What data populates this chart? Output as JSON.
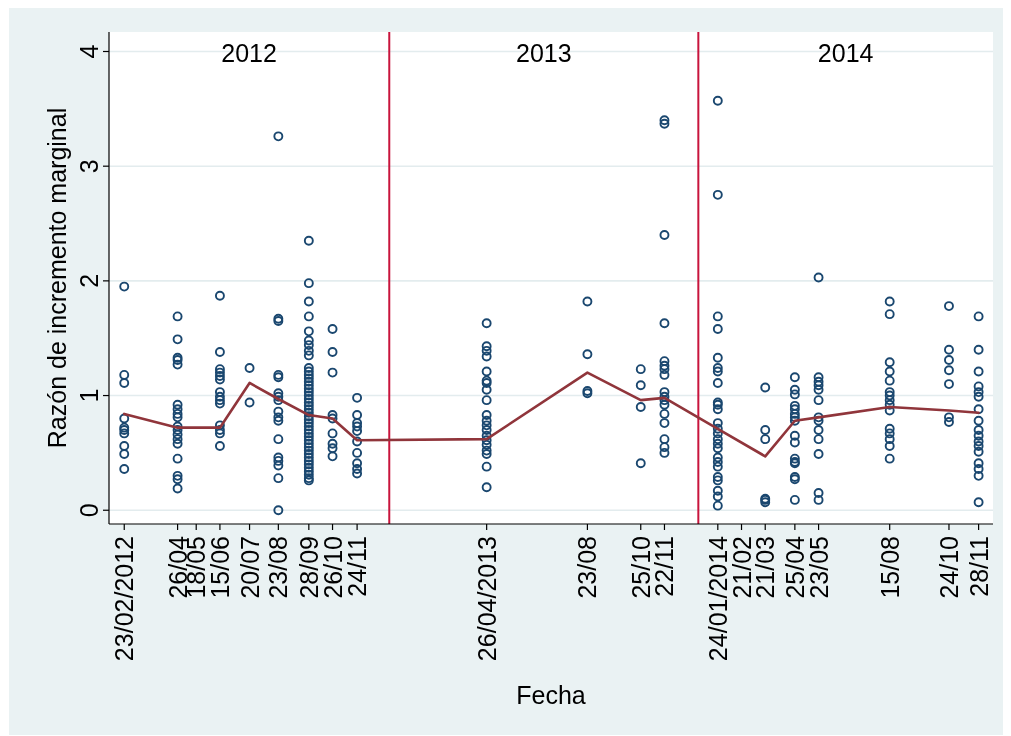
{
  "chart_data": {
    "type": "scatter",
    "xlabel": "Fecha",
    "ylabel": "Razón de incremento marginal",
    "xlim": [
      "2012-02-05",
      "2014-12-15"
    ],
    "ylim": [
      -0.12,
      4.17
    ],
    "xticks": [
      {
        "value": "2012-02-23",
        "label": "23/02/2012"
      },
      {
        "value": "2012-04-26",
        "label": "26/04"
      },
      {
        "value": "2012-05-18",
        "label": "18/05"
      },
      {
        "value": "2012-06-15",
        "label": "15/06"
      },
      {
        "value": "2012-07-20",
        "label": "20/07"
      },
      {
        "value": "2012-08-23",
        "label": "23/08"
      },
      {
        "value": "2012-09-28",
        "label": "28/09"
      },
      {
        "value": "2012-10-26",
        "label": "26/10"
      },
      {
        "value": "2012-11-24",
        "label": "24/11"
      },
      {
        "value": "2013-04-26",
        "label": "26/04/2013"
      },
      {
        "value": "2013-08-23",
        "label": "23/08"
      },
      {
        "value": "2013-10-25",
        "label": "25/10"
      },
      {
        "value": "2013-11-22",
        "label": "22/11"
      },
      {
        "value": "2014-01-24",
        "label": "24/01/2014"
      },
      {
        "value": "2014-02-21",
        "label": "21/02"
      },
      {
        "value": "2014-03-21",
        "label": "21/03"
      },
      {
        "value": "2014-04-25",
        "label": "25/04"
      },
      {
        "value": "2014-05-23",
        "label": "23/05"
      },
      {
        "value": "2014-08-15",
        "label": "15/08"
      },
      {
        "value": "2014-10-24",
        "label": "24/10"
      },
      {
        "value": "2014-11-28",
        "label": "28/11"
      }
    ],
    "yticks": [
      0,
      1,
      2,
      3,
      4
    ],
    "grid": "y",
    "marker": "circle",
    "ref_lines": [
      {
        "axis": "x",
        "value": "2013-01-01",
        "color": "#c8143c"
      },
      {
        "axis": "x",
        "value": "2014-01-01",
        "color": "#c8143c"
      }
    ],
    "annotations": [
      "2012",
      "2013",
      "2014"
    ],
    "series": [
      {
        "color": "#1a476f",
        "x": [
          "2012-02-23",
          "2012-02-23",
          "2012-02-23",
          "2012-02-23",
          "2012-02-23",
          "2012-02-23",
          "2012-02-23",
          "2012-02-23",
          "2012-02-23",
          "2012-02-23",
          "2012-04-26",
          "2012-04-26",
          "2012-04-26",
          "2012-04-26",
          "2012-04-26",
          "2012-04-26",
          "2012-04-26",
          "2012-04-26",
          "2012-04-26",
          "2012-04-26",
          "2012-04-26",
          "2012-04-26",
          "2012-04-26",
          "2012-04-26",
          "2012-04-26",
          "2012-04-26",
          "2012-04-26",
          "2012-04-26",
          "2012-06-15",
          "2012-06-15",
          "2012-06-15",
          "2012-06-15",
          "2012-06-15",
          "2012-06-15",
          "2012-06-15",
          "2012-06-15",
          "2012-06-15",
          "2012-06-15",
          "2012-06-15",
          "2012-06-15",
          "2012-06-15",
          "2012-06-15",
          "2012-07-20",
          "2012-07-20",
          "2012-08-23",
          "2012-08-23",
          "2012-08-23",
          "2012-08-23",
          "2012-08-23",
          "2012-08-23",
          "2012-08-23",
          "2012-08-23",
          "2012-08-23",
          "2012-08-23",
          "2012-08-23",
          "2012-08-23",
          "2012-08-23",
          "2012-08-23",
          "2012-08-23",
          "2012-08-23",
          "2012-08-23",
          "2012-09-28",
          "2012-09-28",
          "2012-09-28",
          "2012-09-28",
          "2012-09-28",
          "2012-09-28",
          "2012-09-28",
          "2012-09-28",
          "2012-09-28",
          "2012-09-28",
          "2012-09-28",
          "2012-09-28",
          "2012-09-28",
          "2012-09-28",
          "2012-09-28",
          "2012-09-28",
          "2012-09-28",
          "2012-09-28",
          "2012-09-28",
          "2012-09-28",
          "2012-09-28",
          "2012-09-28",
          "2012-09-28",
          "2012-09-28",
          "2012-09-28",
          "2012-09-28",
          "2012-09-28",
          "2012-09-28",
          "2012-09-28",
          "2012-09-28",
          "2012-09-28",
          "2012-09-28",
          "2012-09-28",
          "2012-09-28",
          "2012-09-28",
          "2012-09-28",
          "2012-09-28",
          "2012-09-28",
          "2012-09-28",
          "2012-09-28",
          "2012-09-28",
          "2012-09-28",
          "2012-09-28",
          "2012-10-26",
          "2012-10-26",
          "2012-10-26",
          "2012-10-26",
          "2012-10-26",
          "2012-10-26",
          "2012-10-26",
          "2012-10-26",
          "2012-10-26",
          "2012-11-24",
          "2012-11-24",
          "2012-11-24",
          "2012-11-24",
          "2012-11-24",
          "2012-11-24",
          "2012-11-24",
          "2012-11-24",
          "2012-11-24",
          "2012-11-24",
          "2013-04-26",
          "2013-04-26",
          "2013-04-26",
          "2013-04-26",
          "2013-04-26",
          "2013-04-26",
          "2013-04-26",
          "2013-04-26",
          "2013-04-26",
          "2013-04-26",
          "2013-04-26",
          "2013-04-26",
          "2013-04-26",
          "2013-04-26",
          "2013-04-26",
          "2013-04-26",
          "2013-04-26",
          "2013-04-26",
          "2013-04-26",
          "2013-04-26",
          "2013-08-23",
          "2013-08-23",
          "2013-08-23",
          "2013-08-23",
          "2013-10-25",
          "2013-10-25",
          "2013-10-25",
          "2013-10-25",
          "2013-11-22",
          "2013-11-22",
          "2013-11-22",
          "2013-11-22",
          "2013-11-22",
          "2013-11-22",
          "2013-11-22",
          "2013-11-22",
          "2013-11-22",
          "2013-11-22",
          "2013-11-22",
          "2013-11-22",
          "2013-11-22",
          "2013-11-22",
          "2013-11-22",
          "2013-11-22",
          "2013-11-22",
          "2014-01-24",
          "2014-01-24",
          "2014-01-24",
          "2014-01-24",
          "2014-01-24",
          "2014-01-24",
          "2014-01-24",
          "2014-01-24",
          "2014-01-24",
          "2014-01-24",
          "2014-01-24",
          "2014-01-24",
          "2014-01-24",
          "2014-01-24",
          "2014-01-24",
          "2014-01-24",
          "2014-01-24",
          "2014-01-24",
          "2014-01-24",
          "2014-01-24",
          "2014-01-24",
          "2014-01-24",
          "2014-01-24",
          "2014-01-24",
          "2014-01-24",
          "2014-03-21",
          "2014-03-21",
          "2014-03-21",
          "2014-03-21",
          "2014-03-21",
          "2014-03-21",
          "2014-04-25",
          "2014-04-25",
          "2014-04-25",
          "2014-04-25",
          "2014-04-25",
          "2014-04-25",
          "2014-04-25",
          "2014-04-25",
          "2014-04-25",
          "2014-04-25",
          "2014-04-25",
          "2014-04-25",
          "2014-04-25",
          "2014-04-25",
          "2014-04-25",
          "2014-04-25",
          "2014-05-23",
          "2014-05-23",
          "2014-05-23",
          "2014-05-23",
          "2014-05-23",
          "2014-05-23",
          "2014-05-23",
          "2014-05-23",
          "2014-05-23",
          "2014-05-23",
          "2014-05-23",
          "2014-05-23",
          "2014-05-23",
          "2014-08-15",
          "2014-08-15",
          "2014-08-15",
          "2014-08-15",
          "2014-08-15",
          "2014-08-15",
          "2014-08-15",
          "2014-08-15",
          "2014-08-15",
          "2014-08-15",
          "2014-08-15",
          "2014-08-15",
          "2014-08-15",
          "2014-08-15",
          "2014-08-15",
          "2014-10-24",
          "2014-10-24",
          "2014-10-24",
          "2014-10-24",
          "2014-10-24",
          "2014-10-24",
          "2014-10-24",
          "2014-11-28",
          "2014-11-28",
          "2014-11-28",
          "2014-11-28",
          "2014-11-28",
          "2014-11-28",
          "2014-11-28",
          "2014-11-28",
          "2014-11-28",
          "2014-11-28",
          "2014-11-28",
          "2014-11-28",
          "2014-11-28",
          "2014-11-28",
          "2014-11-28",
          "2014-11-28",
          "2014-11-28"
        ],
        "values": [
          1.95,
          1.18,
          1.11,
          0.8,
          0.72,
          0.7,
          0.67,
          0.56,
          0.49,
          0.36,
          1.69,
          1.49,
          1.33,
          1.31,
          1.27,
          0.92,
          0.88,
          0.84,
          0.81,
          0.73,
          0.7,
          0.66,
          0.62,
          0.58,
          0.45,
          0.3,
          0.27,
          0.19,
          1.87,
          1.38,
          1.23,
          1.2,
          1.17,
          1.14,
          1.03,
          0.99,
          0.96,
          0.93,
          0.74,
          0.7,
          0.67,
          0.56,
          1.24,
          0.94,
          3.26,
          1.67,
          1.65,
          1.18,
          1.16,
          1.02,
          0.99,
          0.96,
          0.86,
          0.81,
          0.78,
          0.62,
          0.46,
          0.43,
          0.39,
          0.28,
          0,
          2.35,
          1.98,
          1.82,
          1.69,
          1.56,
          1.48,
          1.44,
          1.39,
          1.35,
          1.24,
          1.21,
          1.18,
          1.15,
          1.12,
          1.09,
          1.06,
          1.03,
          1,
          0.97,
          0.94,
          0.91,
          0.88,
          0.85,
          0.82,
          0.79,
          0.76,
          0.73,
          0.7,
          0.67,
          0.64,
          0.61,
          0.58,
          0.55,
          0.52,
          0.49,
          0.46,
          0.43,
          0.4,
          0.37,
          0.34,
          0.31,
          0.28,
          0.26,
          1.58,
          1.38,
          1.2,
          0.83,
          0.8,
          0.67,
          0.58,
          0.54,
          0.47,
          0.98,
          0.83,
          0.76,
          0.73,
          0.69,
          0.6,
          0.5,
          0.41,
          0.36,
          0.32,
          1.63,
          1.43,
          1.39,
          1.34,
          1.21,
          1.13,
          1.11,
          1.05,
          0.96,
          0.83,
          0.78,
          0.74,
          0.7,
          0.65,
          0.61,
          0.57,
          0.52,
          0.49,
          0.38,
          0.2,
          1.82,
          1.36,
          1.04,
          1.02,
          1.23,
          1.09,
          0.9,
          0.41,
          3.4,
          3.37,
          2.4,
          1.63,
          1.3,
          1.26,
          1.23,
          1.18,
          1.03,
          0.99,
          0.96,
          0.92,
          0.84,
          0.76,
          0.62,
          0.55,
          0.5,
          3.57,
          2.75,
          1.69,
          1.58,
          1.33,
          1.24,
          1.21,
          1.11,
          0.94,
          0.92,
          0.88,
          0.76,
          0.71,
          0.67,
          0.62,
          0.58,
          0.54,
          0.46,
          0.42,
          0.38,
          0.29,
          0.26,
          0.17,
          0.12,
          0.04,
          1.07,
          0.7,
          0.62,
          0.1,
          0.09,
          0.07,
          1.16,
          1.05,
          1.01,
          0.91,
          0.88,
          0.84,
          0.81,
          0.78,
          0.65,
          0.59,
          0.45,
          0.42,
          0.41,
          0.29,
          0.27,
          0.09,
          2.03,
          1.16,
          1.12,
          1.09,
          1.05,
          0.96,
          0.81,
          0.78,
          0.7,
          0.62,
          0.49,
          0.15,
          0.09,
          1.82,
          1.71,
          1.29,
          1.21,
          1.13,
          1.03,
          1,
          0.96,
          0.92,
          0.87,
          0.71,
          0.67,
          0.62,
          0.56,
          0.45,
          1.78,
          1.4,
          1.31,
          1.22,
          1.1,
          0.81,
          0.77,
          1.69,
          1.4,
          1.21,
          1.08,
          1.03,
          0.99,
          0.88,
          0.78,
          0.7,
          0.65,
          0.6,
          0.56,
          0.51,
          0.41,
          0.36,
          0.3,
          0.07
        ]
      },
      {
        "type": "line",
        "color": "#90353b",
        "marker": "none",
        "x": [
          "2012-02-23",
          "2012-04-26",
          "2012-06-15",
          "2012-07-20",
          "2012-08-23",
          "2012-09-28",
          "2012-10-26",
          "2012-11-24",
          "2013-04-26",
          "2013-08-23",
          "2013-10-25",
          "2013-11-22",
          "2014-01-24",
          "2014-03-21",
          "2014-04-25",
          "2014-05-23",
          "2014-08-15",
          "2014-10-24",
          "2014-11-28"
        ],
        "values": [
          0.84,
          0.72,
          0.72,
          1.11,
          0.97,
          0.83,
          0.8,
          0.61,
          0.62,
          1.2,
          0.96,
          0.98,
          0.71,
          0.47,
          0.78,
          0.81,
          0.9,
          0.87,
          0.85
        ]
      }
    ]
  }
}
